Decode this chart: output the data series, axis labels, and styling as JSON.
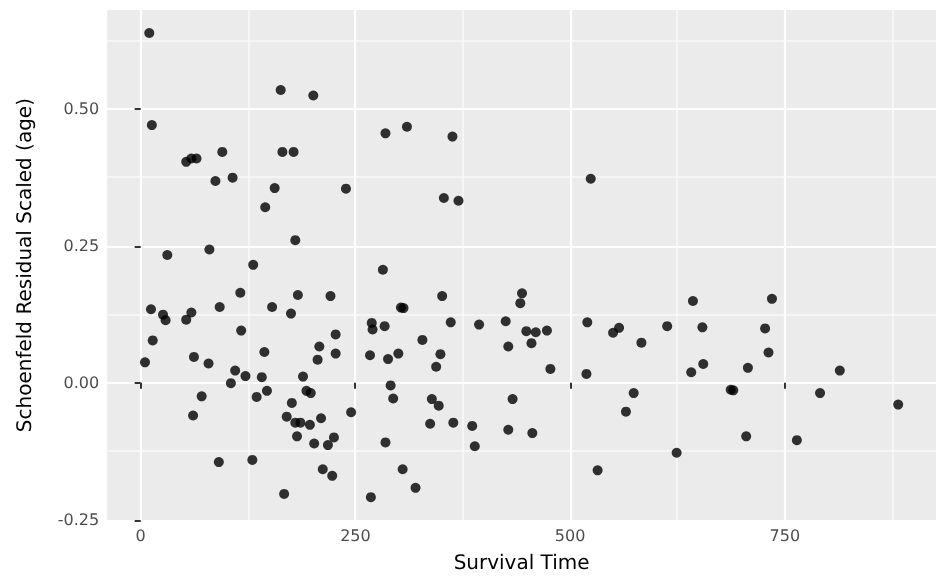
{
  "chart_data": {
    "type": "scatter",
    "xlabel": "Survival Time",
    "ylabel": "Schoenfeld Residual Scaled (age)",
    "xlim": [
      -39,
      926
    ],
    "ylim": [
      -0.251,
      0.68
    ],
    "xticks": [
      0,
      250,
      500,
      750
    ],
    "yticks": [
      {
        "value": -0.25,
        "label": "-0.25"
      },
      {
        "value": 0,
        "label": "0.00"
      },
      {
        "value": 0.25,
        "label": "0.25"
      },
      {
        "value": 0.5,
        "label": "0.50"
      }
    ],
    "grid": true,
    "marker": "circle",
    "series": [
      {
        "color": "#000000",
        "x": [
          10,
          13,
          12,
          14,
          5,
          26,
          29,
          31,
          53,
          59,
          65,
          53,
          59,
          62,
          61,
          71,
          79,
          80,
          87,
          95,
          92,
          91,
          105,
          107,
          110,
          116,
          117,
          122,
          131,
          130,
          135,
          141,
          144,
          145,
          147,
          153,
          156,
          163,
          165,
          167,
          170,
          175,
          176,
          178,
          180,
          183,
          180,
          186,
          182,
          189,
          193,
          198,
          197,
          201,
          202,
          208,
          206,
          210,
          212,
          221,
          218,
          223,
          225,
          227,
          227,
          239,
          245,
          268,
          267,
          269,
          270,
          285,
          282,
          284,
          288,
          285,
          291,
          294,
          300,
          303,
          306,
          305,
          310,
          320,
          328,
          337,
          339,
          344,
          347,
          349,
          351,
          353,
          361,
          363,
          364,
          370,
          386,
          389,
          394,
          425,
          428,
          428,
          433,
          442,
          444,
          449,
          455,
          460,
          456,
          473,
          477,
          520,
          519,
          524,
          532,
          550,
          557,
          565,
          574,
          583,
          613,
          624,
          641,
          643,
          654,
          655,
          687,
          690,
          705,
          707,
          727,
          731,
          735,
          764,
          791,
          814,
          882
        ],
        "values": [
          0.638,
          0.47,
          0.134,
          0.077,
          0.037,
          0.124,
          0.114,
          0.233,
          0.403,
          0.409,
          0.409,
          0.115,
          0.128,
          0.047,
          -0.06,
          -0.025,
          0.035,
          0.243,
          0.368,
          0.421,
          0.138,
          -0.145,
          -0.001,
          0.374,
          0.022,
          0.164,
          0.095,
          0.012,
          0.215,
          -0.141,
          -0.026,
          0.01,
          0.056,
          0.32,
          -0.015,
          0.138,
          0.355,
          0.534,
          0.421,
          -0.203,
          -0.062,
          0.126,
          -0.037,
          0.421,
          0.26,
          0.16,
          -0.073,
          -0.073,
          -0.098,
          0.011,
          -0.015,
          -0.019,
          -0.077,
          0.524,
          -0.111,
          0.066,
          0.042,
          -0.065,
          -0.158,
          0.158,
          -0.114,
          -0.17,
          -0.1,
          0.088,
          0.053,
          0.354,
          -0.054,
          -0.209,
          0.05,
          0.109,
          0.097,
          0.455,
          0.206,
          0.103,
          0.043,
          -0.109,
          -0.005,
          -0.029,
          0.053,
          0.137,
          0.136,
          -0.158,
          0.467,
          -0.192,
          0.078,
          -0.075,
          -0.03,
          0.029,
          -0.042,
          0.052,
          0.158,
          0.337,
          0.11,
          0.449,
          -0.073,
          0.332,
          -0.079,
          -0.116,
          0.106,
          0.112,
          0.066,
          -0.086,
          -0.03,
          0.145,
          0.163,
          0.094,
          0.072,
          0.092,
          -0.092,
          0.095,
          0.025,
          0.11,
          0.016,
          0.372,
          -0.16,
          0.091,
          0.1,
          -0.053,
          -0.019,
          0.073,
          0.103,
          -0.128,
          0.019,
          0.149,
          0.101,
          0.034,
          -0.013,
          -0.014,
          -0.098,
          0.027,
          0.099,
          0.055,
          0.153,
          -0.105,
          -0.019,
          0.022,
          -0.04
        ]
      }
    ]
  }
}
